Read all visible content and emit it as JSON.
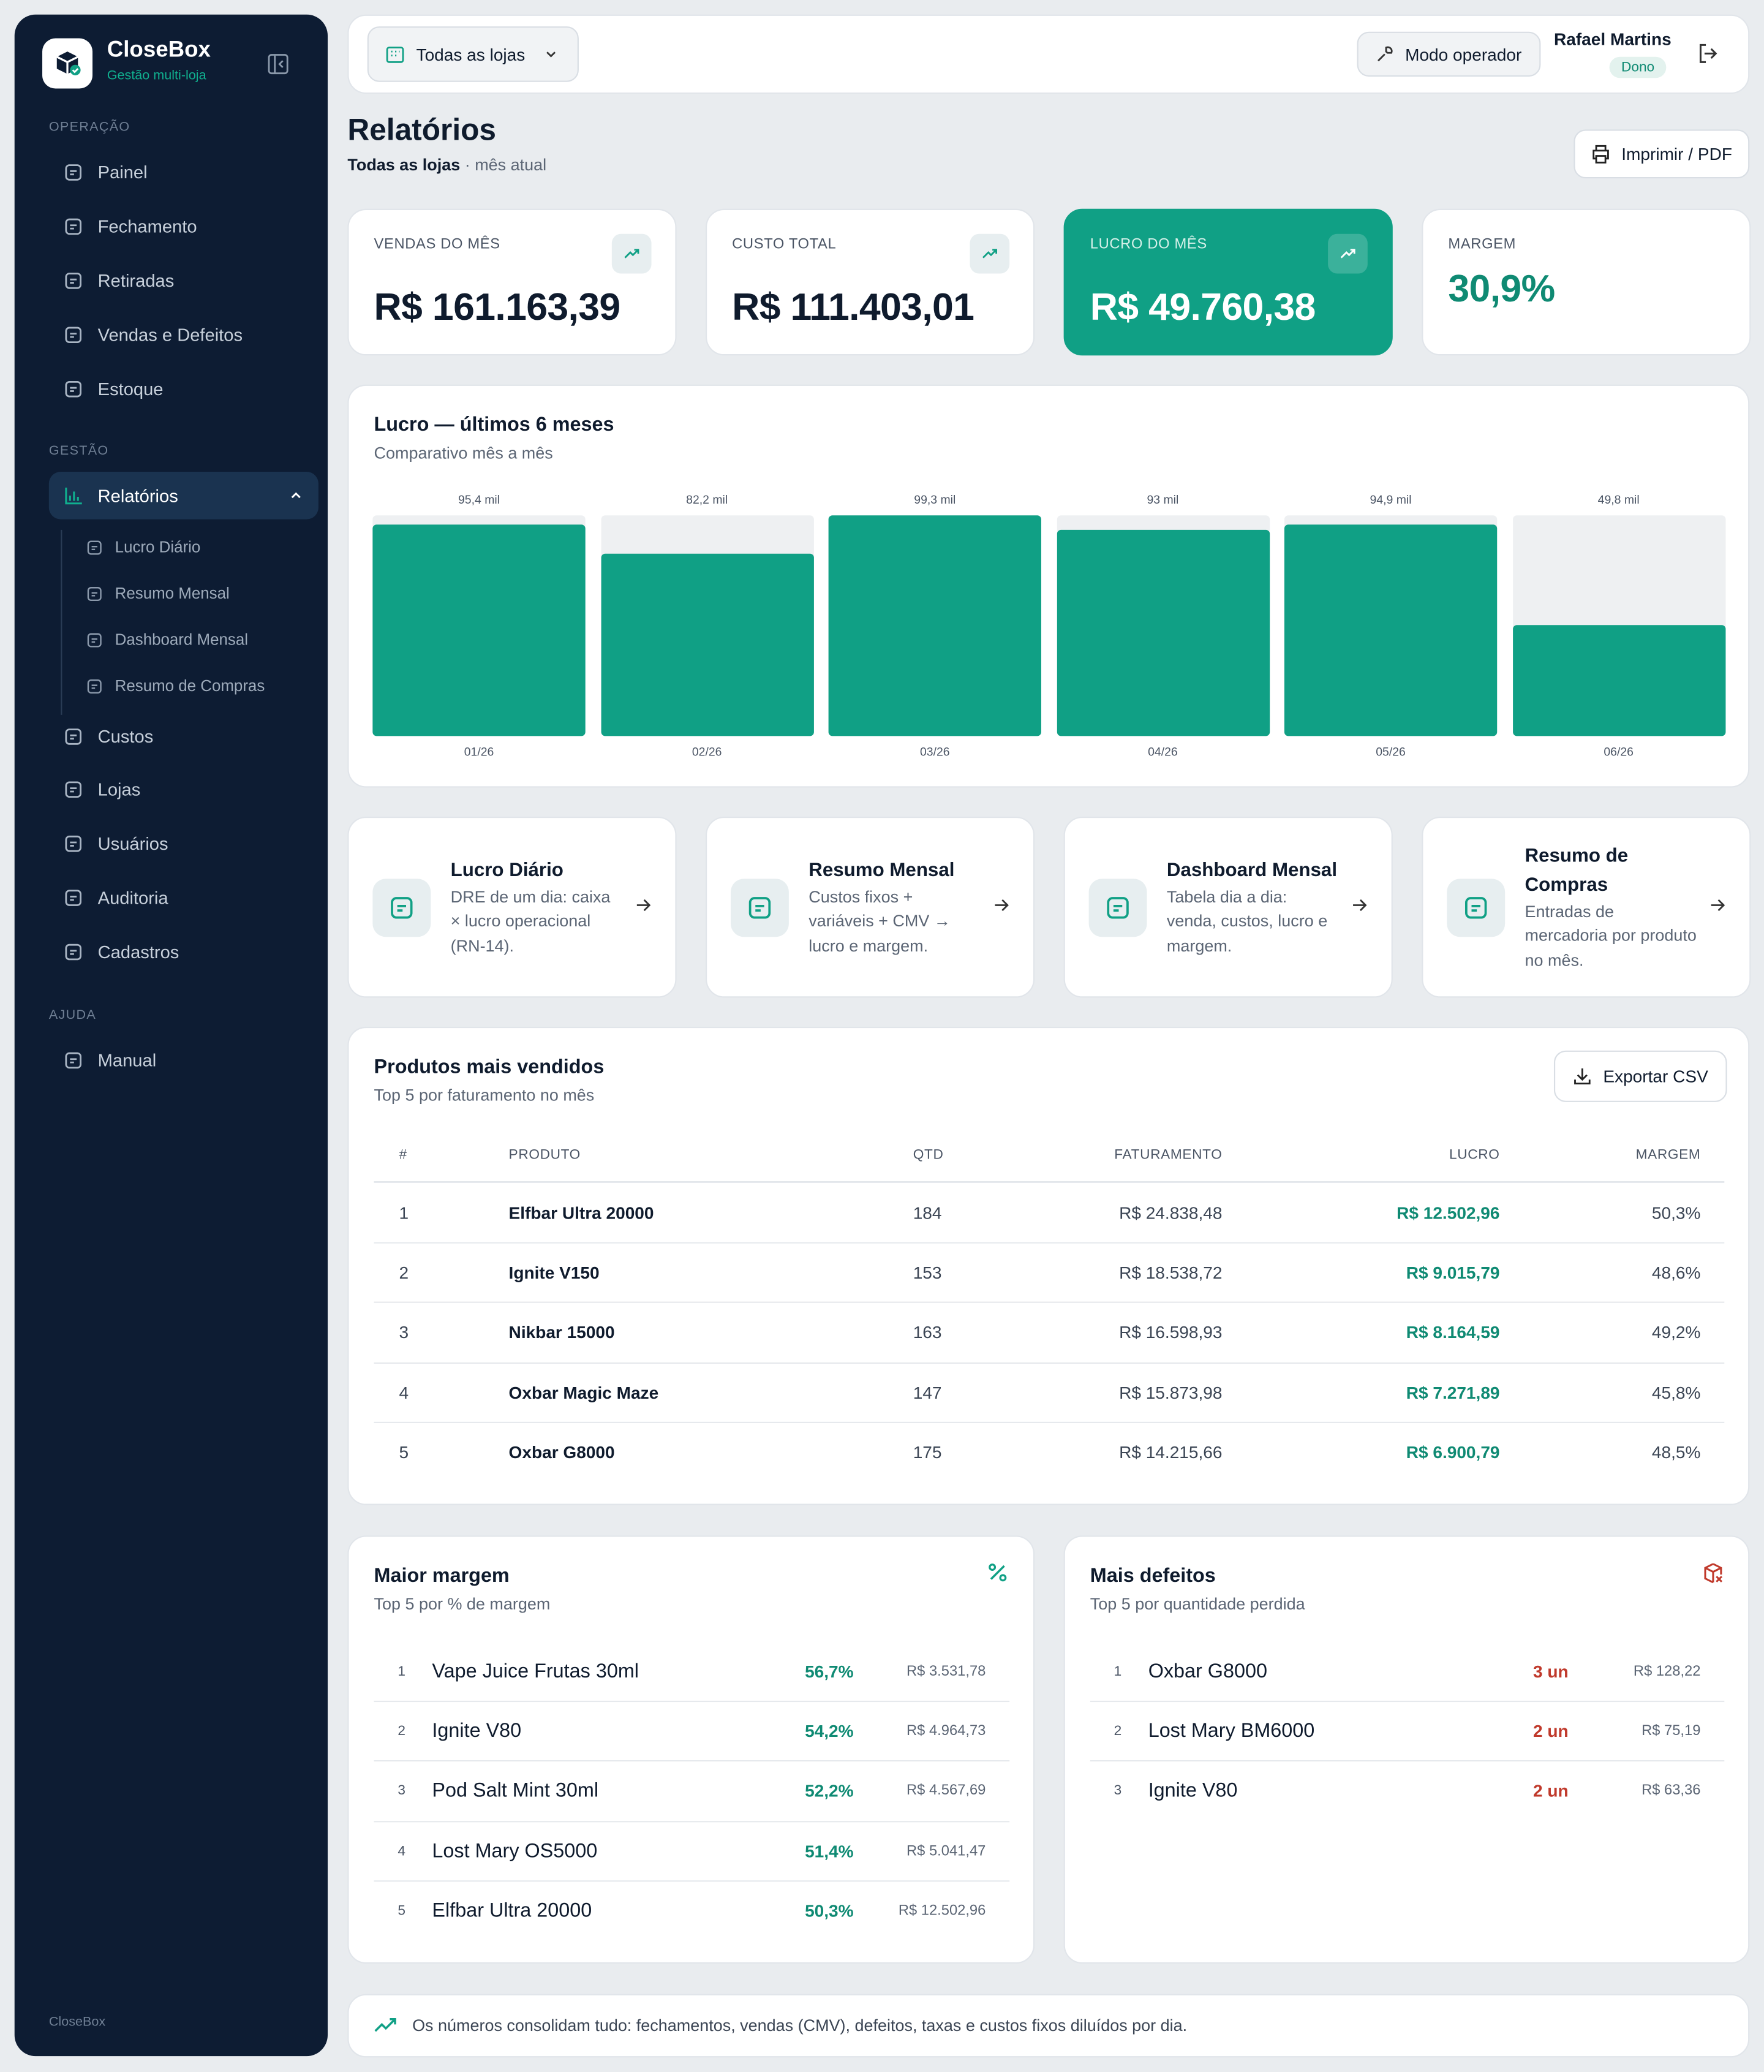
{
  "sidebar": {
    "brand": "CloseBox",
    "tagline": "Gestão multi-loja",
    "operacao_title": "OPERAÇÃO",
    "operacao": [
      "Painel",
      "Fechamento",
      "Retiradas",
      "Vendas e Defeitos",
      "Estoque"
    ],
    "gestao_title": "GESTÃO",
    "active": "Relatórios",
    "submenu": [
      "Lucro Diário",
      "Resumo Mensal",
      "Dashboard Mensal",
      "Resumo de Compras"
    ],
    "gestao": [
      "Custos",
      "Lojas",
      "Usuários",
      "Auditoria",
      "Cadastros"
    ],
    "ajuda_title": "AJUDA",
    "ajuda": [
      "Manual"
    ],
    "footer": "CloseBox"
  },
  "topbar": {
    "store_select": "Todas as lojas",
    "operator_button": "Modo operador",
    "user_name": "Rafael Martins",
    "user_role": "Dono"
  },
  "page": {
    "title": "Relatórios",
    "store": "Todas as lojas",
    "period": "· mês atual",
    "print_button": "Imprimir / PDF"
  },
  "kpis": [
    {
      "label": "VENDAS DO MÊS",
      "value": "R$ 161.163,39"
    },
    {
      "label": "CUSTO TOTAL",
      "value": "R$ 111.403,01"
    },
    {
      "label": "LUCRO DO MÊS",
      "value": "R$ 49.760,38"
    },
    {
      "label": "MARGEM",
      "value": "30,9%"
    }
  ],
  "profit_chart": {
    "title": "Lucro — últimos 6 meses",
    "subtitle": "Comparativo mês a mês",
    "categories": [
      "01/26",
      "02/26",
      "03/26",
      "04/26",
      "05/26",
      "06/26"
    ],
    "values": [
      95.4,
      82.2,
      99.3,
      93,
      94.9,
      49.8
    ],
    "value_labels": [
      "95,4 mil",
      "82,2 mil",
      "99,3 mil",
      "93 mil",
      "94,9 mil",
      "49,8 mil"
    ]
  },
  "shortcuts": [
    {
      "title": "Lucro Diário",
      "description": "DRE de um dia: caixa × lucro operacional (RN-14)."
    },
    {
      "title": "Resumo Mensal",
      "description": "Custos fixos + variáveis + CMV → lucro e margem."
    },
    {
      "title": "Dashboard Mensal",
      "description": "Tabela dia a dia: venda, custos, lucro e margem."
    },
    {
      "title": "Resumo de Compras",
      "description": "Entradas de mercadoria por produto no mês."
    }
  ],
  "top_products": {
    "title": "Produtos mais vendidos",
    "subtitle": "Top 5 por faturamento no mês",
    "export_button": "Exportar CSV",
    "columns": [
      "#",
      "PRODUTO",
      "QTD",
      "FATURAMENTO",
      "LUCRO",
      "MARGEM"
    ],
    "rows": [
      [
        "1",
        "Elfbar Ultra 20000",
        "184",
        "R$ 24.838,48",
        "R$ 12.502,96",
        "50,3%"
      ],
      [
        "2",
        "Ignite V150",
        "153",
        "R$ 18.538,72",
        "R$ 9.015,79",
        "48,6%"
      ],
      [
        "3",
        "Nikbar 15000",
        "163",
        "R$ 16.598,93",
        "R$ 8.164,59",
        "49,2%"
      ],
      [
        "4",
        "Oxbar Magic Maze",
        "147",
        "R$ 15.873,98",
        "R$ 7.271,89",
        "45,8%"
      ],
      [
        "5",
        "Oxbar G8000",
        "175",
        "R$ 14.215,66",
        "R$ 6.900,79",
        "48,5%"
      ]
    ]
  },
  "highest_margin": {
    "title": "Maior margem",
    "subtitle": "Top 5 por % de margem",
    "rows": [
      [
        "1",
        "Vape Juice Frutas 30ml",
        "56,7%",
        "R$ 3.531,78"
      ],
      [
        "2",
        "Ignite V80",
        "54,2%",
        "R$ 4.964,73"
      ],
      [
        "3",
        "Pod Salt Mint 30ml",
        "52,2%",
        "R$ 4.567,69"
      ],
      [
        "4",
        "Lost Mary OS5000",
        "51,4%",
        "R$ 5.041,47"
      ],
      [
        "5",
        "Elfbar Ultra 20000",
        "50,3%",
        "R$ 12.502,96"
      ]
    ]
  },
  "most_defects": {
    "title": "Mais defeitos",
    "subtitle": "Top 5 por quantidade perdida",
    "rows": [
      [
        "1",
        "Oxbar G8000",
        "3 un",
        "R$ 128,22"
      ],
      [
        "2",
        "Lost Mary BM6000",
        "2 un",
        "R$ 75,19"
      ],
      [
        "3",
        "Ignite V80",
        "2 un",
        "R$ 63,36"
      ]
    ]
  },
  "footer_note": "Os números consolidam tudo: fechamentos, vendas (CMV), defeitos, taxas e custos fixos diluídos por dia."
}
